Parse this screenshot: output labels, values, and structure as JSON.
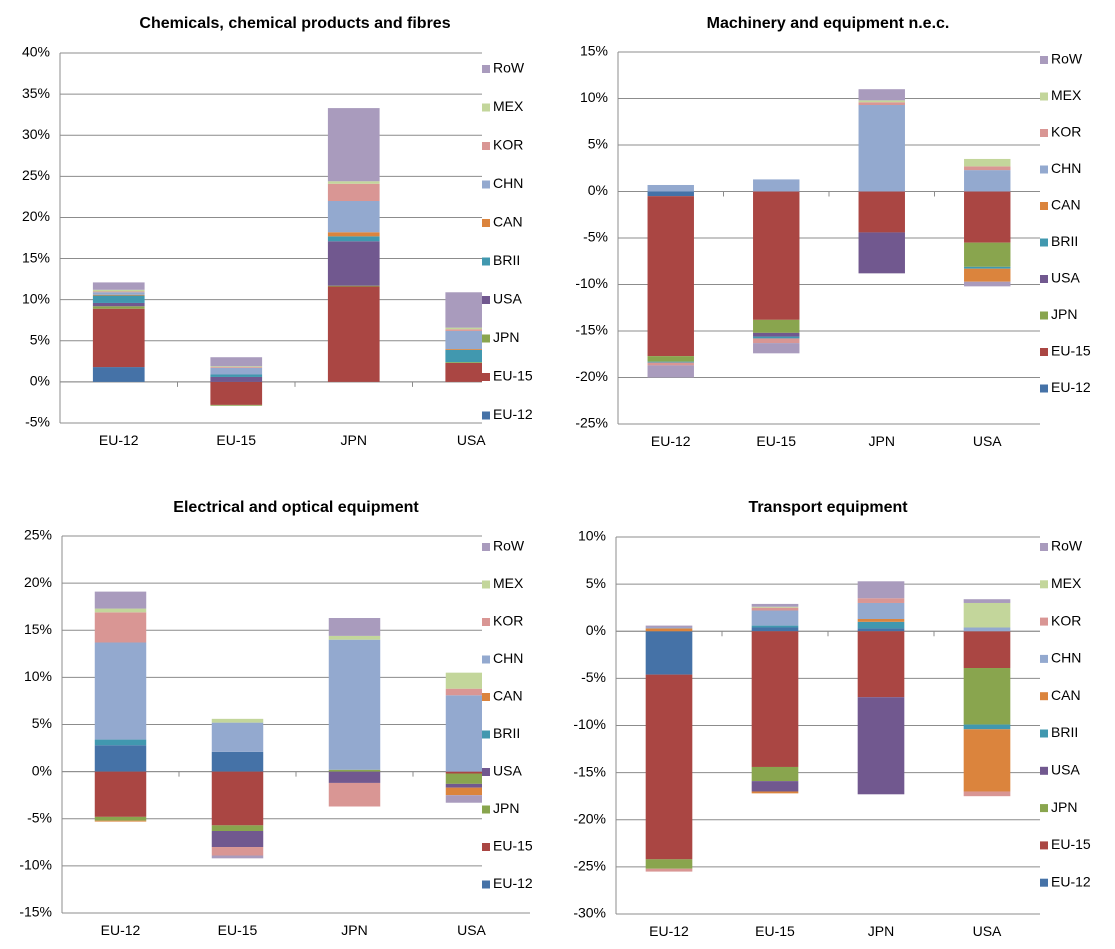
{
  "legend_order": [
    "RoW",
    "MEX",
    "KOR",
    "CHN",
    "CAN",
    "BRII",
    "USA",
    "JPN",
    "EU-15",
    "EU-12"
  ],
  "colors": {
    "EU-12": "#4572A7",
    "EU-15": "#AA4643",
    "JPN": "#89A54E",
    "USA": "#71588F",
    "BRII": "#4198AF",
    "CAN": "#DB843D",
    "CHN": "#93A9CF",
    "KOR": "#D99694",
    "MEX": "#C3D69B",
    "RoW": "#A99BBD"
  },
  "chart_data": [
    {
      "type": "bar",
      "stacked": true,
      "title": "Chemicals, chemical products and fibres",
      "categories": [
        "EU-12",
        "EU-15",
        "JPN",
        "USA"
      ],
      "ylim": [
        -5,
        40
      ],
      "yticks": [
        "-5%",
        "0%",
        "5%",
        "10%",
        "15%",
        "20%",
        "25%",
        "30%",
        "35%",
        "40%"
      ],
      "ytick_values": [
        -5,
        0,
        5,
        10,
        15,
        20,
        25,
        30,
        35,
        40
      ],
      "legend_position": "right",
      "series": [
        {
          "name": "EU-12",
          "values": [
            1.8,
            0,
            0,
            0
          ]
        },
        {
          "name": "EU-15",
          "values": [
            7.1,
            -2.8,
            11.6,
            2.3
          ]
        },
        {
          "name": "JPN",
          "values": [
            0.3,
            -0.1,
            0.1,
            0.1
          ]
        },
        {
          "name": "USA",
          "values": [
            0.4,
            0.6,
            5.4,
            0
          ]
        },
        {
          "name": "BRII",
          "values": [
            0.9,
            0.3,
            0.6,
            1.5
          ]
        },
        {
          "name": "CAN",
          "values": [
            0.1,
            0,
            0.5,
            0.1
          ]
        },
        {
          "name": "CHN",
          "values": [
            0.3,
            0.8,
            3.8,
            2.2
          ]
        },
        {
          "name": "KOR",
          "values": [
            0.1,
            0.1,
            2.1,
            0.2
          ]
        },
        {
          "name": "MEX",
          "values": [
            0.2,
            0.1,
            0.3,
            0.2
          ]
        },
        {
          "name": "RoW",
          "values": [
            0.9,
            1.1,
            8.9,
            4.3
          ]
        }
      ]
    },
    {
      "type": "bar",
      "stacked": true,
      "title": "Machinery and equipment n.e.c.",
      "categories": [
        "EU-12",
        "EU-15",
        "JPN",
        "USA"
      ],
      "ylim": [
        -25,
        15
      ],
      "yticks": [
        "-25%",
        "-20%",
        "-15%",
        "-10%",
        "-5%",
        "0%",
        "5%",
        "10%",
        "15%"
      ],
      "ytick_values": [
        -25,
        -20,
        -15,
        -10,
        -5,
        0,
        5,
        10,
        15
      ],
      "legend_position": "right",
      "series": [
        {
          "name": "EU-12",
          "values": [
            -0.5,
            0,
            0,
            0
          ]
        },
        {
          "name": "EU-15",
          "values": [
            -17.2,
            -13.8,
            -4.4,
            -5.5
          ]
        },
        {
          "name": "JPN",
          "values": [
            -0.6,
            -1.4,
            0,
            -2.6
          ]
        },
        {
          "name": "USA",
          "values": [
            0,
            -0.4,
            -4.4,
            0
          ]
        },
        {
          "name": "BRII",
          "values": [
            -0.1,
            -0.2,
            0,
            -0.2
          ]
        },
        {
          "name": "CAN",
          "values": [
            0,
            0,
            0,
            -1.4
          ]
        },
        {
          "name": "CHN",
          "values": [
            0.7,
            1.3,
            9.3,
            2.3
          ]
        },
        {
          "name": "KOR",
          "values": [
            -0.3,
            -0.5,
            0.3,
            0.4
          ]
        },
        {
          "name": "MEX",
          "values": [
            0,
            0,
            0.2,
            0.8
          ]
        },
        {
          "name": "RoW",
          "values": [
            -1.3,
            -1.1,
            1.2,
            -0.5
          ]
        }
      ]
    },
    {
      "type": "bar",
      "stacked": true,
      "title": "Electrical and optical equipment",
      "categories": [
        "EU-12",
        "EU-15",
        "JPN",
        "USA"
      ],
      "ylim": [
        -15,
        25
      ],
      "yticks": [
        "-15%",
        "-10%",
        "-5%",
        "0%",
        "5%",
        "10%",
        "15%",
        "20%",
        "25%"
      ],
      "ytick_values": [
        -15,
        -10,
        -5,
        0,
        5,
        10,
        15,
        20,
        25
      ],
      "legend_position": "right",
      "series": [
        {
          "name": "EU-12",
          "values": [
            2.8,
            2.1,
            0,
            0
          ]
        },
        {
          "name": "EU-15",
          "values": [
            -4.8,
            -5.7,
            0,
            -0.2
          ]
        },
        {
          "name": "JPN",
          "values": [
            -0.4,
            -0.6,
            0.2,
            -1.1
          ]
        },
        {
          "name": "USA",
          "values": [
            0,
            -1.7,
            -1.2,
            -0.4
          ]
        },
        {
          "name": "BRII",
          "values": [
            0.6,
            0,
            0,
            0
          ]
        },
        {
          "name": "CAN",
          "values": [
            -0.1,
            0,
            0,
            -0.8
          ]
        },
        {
          "name": "CHN",
          "values": [
            10.3,
            3.1,
            13.8,
            8.1
          ]
        },
        {
          "name": "KOR",
          "values": [
            3.2,
            -0.9,
            -2.5,
            0.7
          ]
        },
        {
          "name": "MEX",
          "values": [
            0.4,
            0.4,
            0.4,
            1.7
          ]
        },
        {
          "name": "RoW",
          "values": [
            1.8,
            -0.3,
            1.9,
            -0.8
          ]
        }
      ]
    },
    {
      "type": "bar",
      "stacked": true,
      "title": "Transport equipment",
      "categories": [
        "EU-12",
        "EU-15",
        "JPN",
        "USA"
      ],
      "ylim": [
        -30,
        10
      ],
      "yticks": [
        "-30%",
        "-25%",
        "-20%",
        "-15%",
        "-10%",
        "-5%",
        "0%",
        "5%",
        "10%"
      ],
      "ytick_values": [
        -30,
        -25,
        -20,
        -15,
        -10,
        -5,
        0,
        5,
        10
      ],
      "legend_position": "right",
      "series": [
        {
          "name": "EU-12",
          "values": [
            -4.6,
            0.4,
            0.3,
            0
          ]
        },
        {
          "name": "EU-15",
          "values": [
            -19.6,
            -14.4,
            -7.0,
            -3.9
          ]
        },
        {
          "name": "JPN",
          "values": [
            -1.0,
            -1.5,
            0,
            -6.0
          ]
        },
        {
          "name": "USA",
          "values": [
            0,
            -1.1,
            -10.3,
            0
          ]
        },
        {
          "name": "BRII",
          "values": [
            0,
            0.2,
            0.7,
            -0.5
          ]
        },
        {
          "name": "CAN",
          "values": [
            0.3,
            -0.2,
            0.3,
            -6.6
          ]
        },
        {
          "name": "CHN",
          "values": [
            0.1,
            1.6,
            1.7,
            0.4
          ]
        },
        {
          "name": "KOR",
          "values": [
            -0.3,
            0.3,
            0.5,
            -0.5
          ]
        },
        {
          "name": "MEX",
          "values": [
            0,
            0.1,
            0,
            2.6
          ]
        },
        {
          "name": "RoW",
          "values": [
            0.2,
            0.3,
            1.8,
            0.4
          ]
        }
      ]
    }
  ]
}
